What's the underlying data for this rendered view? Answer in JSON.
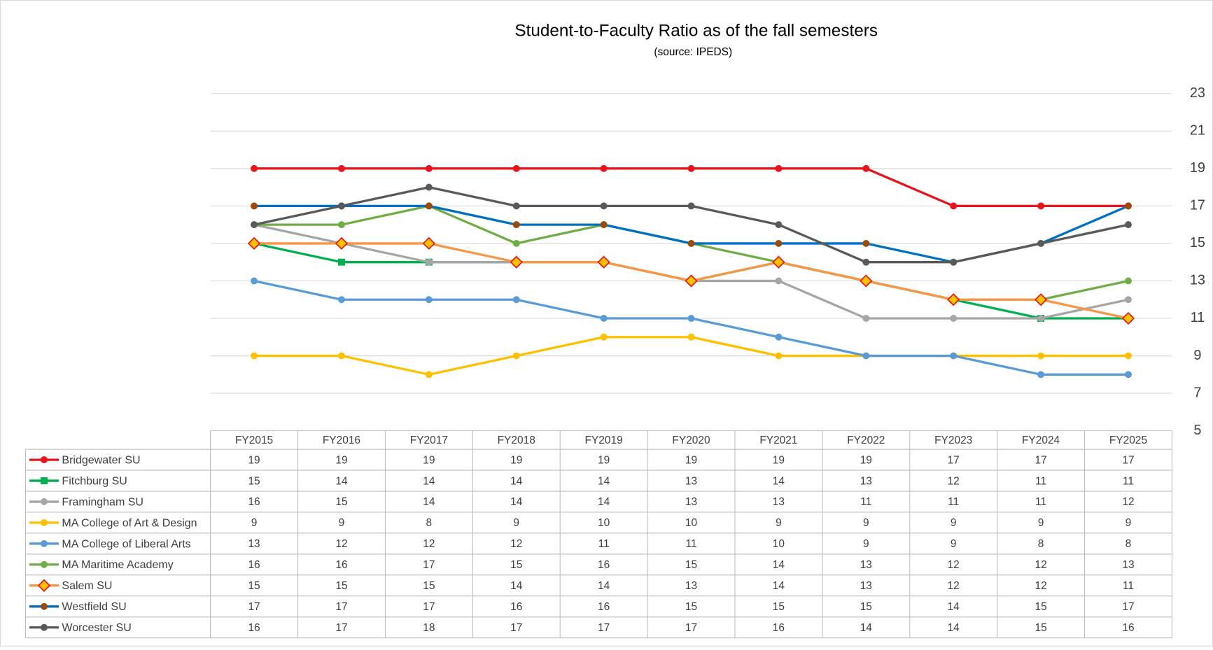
{
  "chart_data": {
    "type": "line",
    "title": "Student-to-Faculty Ratio as of the fall semesters",
    "subtitle": "(source: IPEDS)",
    "categories": [
      "FY2015",
      "FY2016",
      "FY2017",
      "FY2018",
      "FY2019",
      "FY2020",
      "FY2021",
      "FY2022",
      "FY2023",
      "FY2024",
      "FY2025"
    ],
    "ylim": [
      5,
      23
    ],
    "yticks": [
      5,
      7,
      9,
      11,
      13,
      15,
      17,
      19,
      21,
      23
    ],
    "grid": true,
    "series": [
      {
        "name": "Bridgewater SU",
        "color": "#e8141b",
        "marker": "circle",
        "values": [
          19,
          19,
          19,
          19,
          19,
          19,
          19,
          19,
          17,
          17,
          17
        ]
      },
      {
        "name": "Fitchburg SU",
        "color": "#00b050",
        "marker": "square",
        "values": [
          15,
          14,
          14,
          14,
          14,
          13,
          14,
          13,
          12,
          11,
          11
        ]
      },
      {
        "name": "Framingham SU",
        "color": "#a6a6a6",
        "marker": "circle",
        "values": [
          16,
          15,
          14,
          14,
          14,
          13,
          13,
          11,
          11,
          11,
          12
        ]
      },
      {
        "name": "MA College of Art & Design",
        "color": "#ffc000",
        "marker": "circle",
        "values": [
          9,
          9,
          8,
          9,
          10,
          10,
          9,
          9,
          9,
          9,
          9
        ]
      },
      {
        "name": "MA College of Liberal Arts",
        "color": "#5b9bd5",
        "marker": "circle",
        "values": [
          13,
          12,
          12,
          12,
          11,
          11,
          10,
          9,
          9,
          8,
          8
        ]
      },
      {
        "name": "MA Maritime Academy",
        "color": "#70ad47",
        "marker": "circle",
        "values": [
          16,
          16,
          17,
          15,
          16,
          15,
          14,
          13,
          12,
          12,
          13
        ]
      },
      {
        "name": "Salem SU",
        "color": "#f79646",
        "marker": "diamond",
        "marker_color": "#ffc000",
        "marker_stroke": "#e8141b",
        "values": [
          15,
          15,
          15,
          14,
          14,
          13,
          14,
          13,
          12,
          12,
          11
        ]
      },
      {
        "name": "Westfield SU",
        "color": "#0070c0",
        "marker": "circle",
        "marker_color": "#9c4a0a",
        "values": [
          17,
          17,
          17,
          16,
          16,
          15,
          15,
          15,
          14,
          15,
          17
        ]
      },
      {
        "name": "Worcester SU",
        "color": "#595959",
        "marker": "circle",
        "values": [
          16,
          17,
          18,
          17,
          17,
          17,
          16,
          14,
          14,
          15,
          16
        ]
      }
    ]
  }
}
